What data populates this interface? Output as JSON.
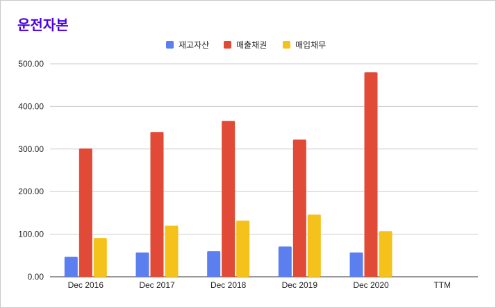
{
  "chart_data": {
    "type": "bar",
    "title": "운전자본",
    "title_color": "#4a00e0",
    "categories": [
      "Dec 2016",
      "Dec 2017",
      "Dec 2018",
      "Dec 2019",
      "Dec 2020",
      "TTM"
    ],
    "series": [
      {
        "name": "재고자산",
        "color": "#5b7fee",
        "values": [
          47,
          57,
          60,
          71,
          57,
          null
        ]
      },
      {
        "name": "매출채권",
        "color": "#e04a36",
        "values": [
          301,
          340,
          366,
          322,
          480,
          null
        ]
      },
      {
        "name": "매입채무",
        "color": "#f5c21b",
        "values": [
          91,
          120,
          132,
          146,
          107,
          null
        ]
      }
    ],
    "ylim": [
      0,
      500
    ],
    "yticks": [
      "0.00",
      "100.00",
      "200.00",
      "300.00",
      "400.00",
      "500.00"
    ],
    "grid": true,
    "legend_position": "top-center",
    "xlabel": "",
    "ylabel": ""
  }
}
